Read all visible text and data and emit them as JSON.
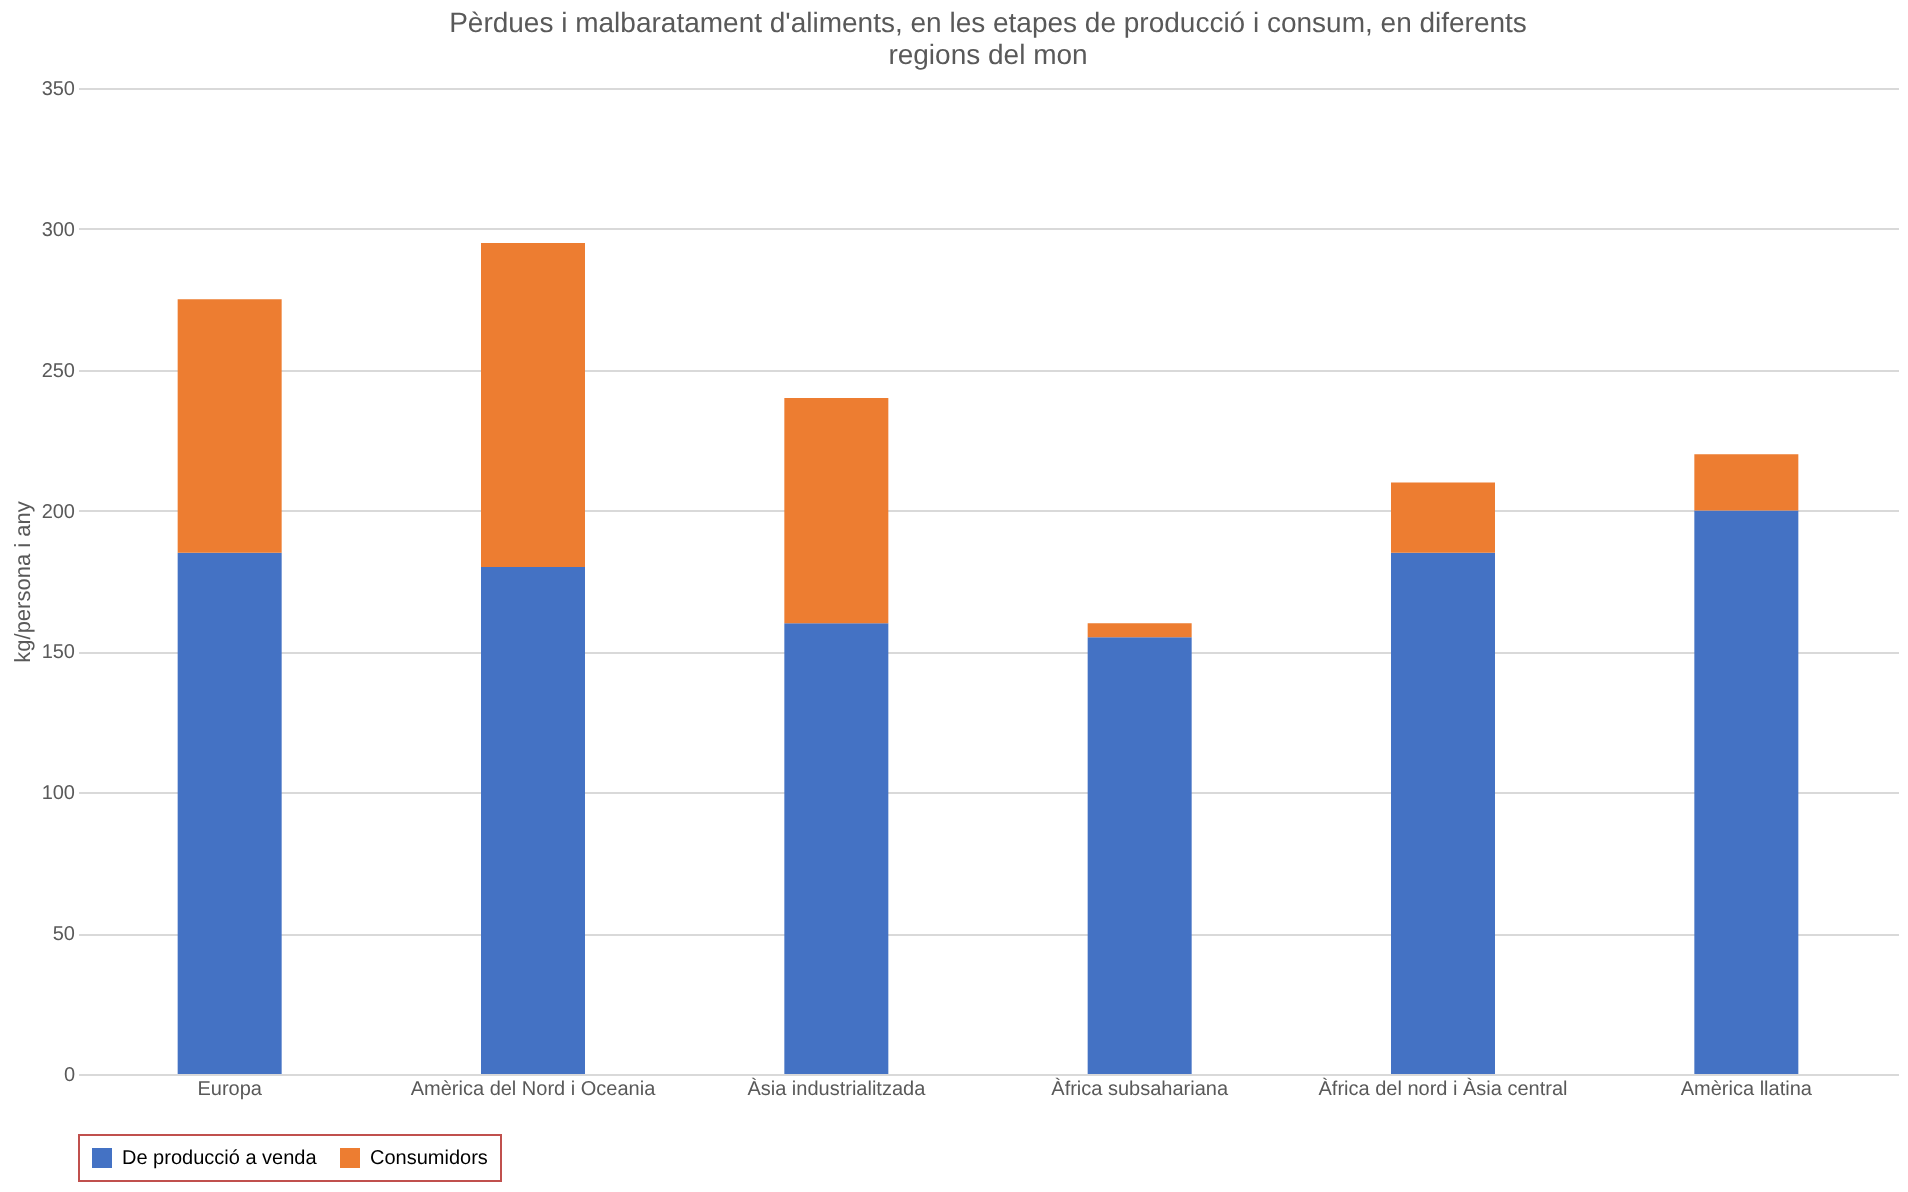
{
  "chart_data": {
    "type": "bar",
    "stacked": true,
    "title": "Pèrdues i malbaratament d'aliments, en les etapes de producció i consum, en diferents regions del mon",
    "categories": [
      "Europa",
      "Amèrica del Nord i Oceania",
      "Àsia industrialitzada",
      "Àfrica subsahariana",
      "Àfrica del nord i Àsia central",
      "Amèrica llatina"
    ],
    "series": [
      {
        "name": "De producció a venda",
        "color": "#4472c4",
        "values": [
          185,
          180,
          160,
          155,
          185,
          200
        ]
      },
      {
        "name": "Consumidors",
        "color": "#ed7d31",
        "values": [
          90,
          115,
          80,
          5,
          25,
          20
        ]
      }
    ],
    "ylabel": "kg/persona i any",
    "ylim": [
      0,
      350
    ],
    "yticks": [
      0,
      50,
      100,
      150,
      200,
      250,
      300,
      350
    ],
    "grid": "y",
    "legend": "bottom"
  }
}
